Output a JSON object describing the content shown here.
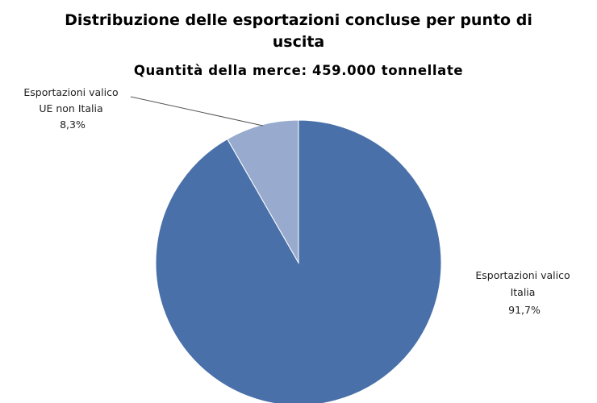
{
  "chart_data": {
    "type": "pie",
    "title_lines": [
      "Distribuzione delle esportazioni concluse per punto di",
      "uscita"
    ],
    "subtitle": "Quantità della merce: 459.000 tonnellate",
    "slices": [
      {
        "label_lines": [
          "Esportazioni valico",
          "Italia"
        ],
        "value": 91.7,
        "value_label": "91,7%",
        "color": "#4A70A9"
      },
      {
        "label_lines": [
          "Esportazioni valico",
          "UE non Italia"
        ],
        "value": 8.3,
        "value_label": "8,3%",
        "color": "#98ABCF"
      }
    ],
    "legend": "none",
    "start": "top, clockwise"
  }
}
